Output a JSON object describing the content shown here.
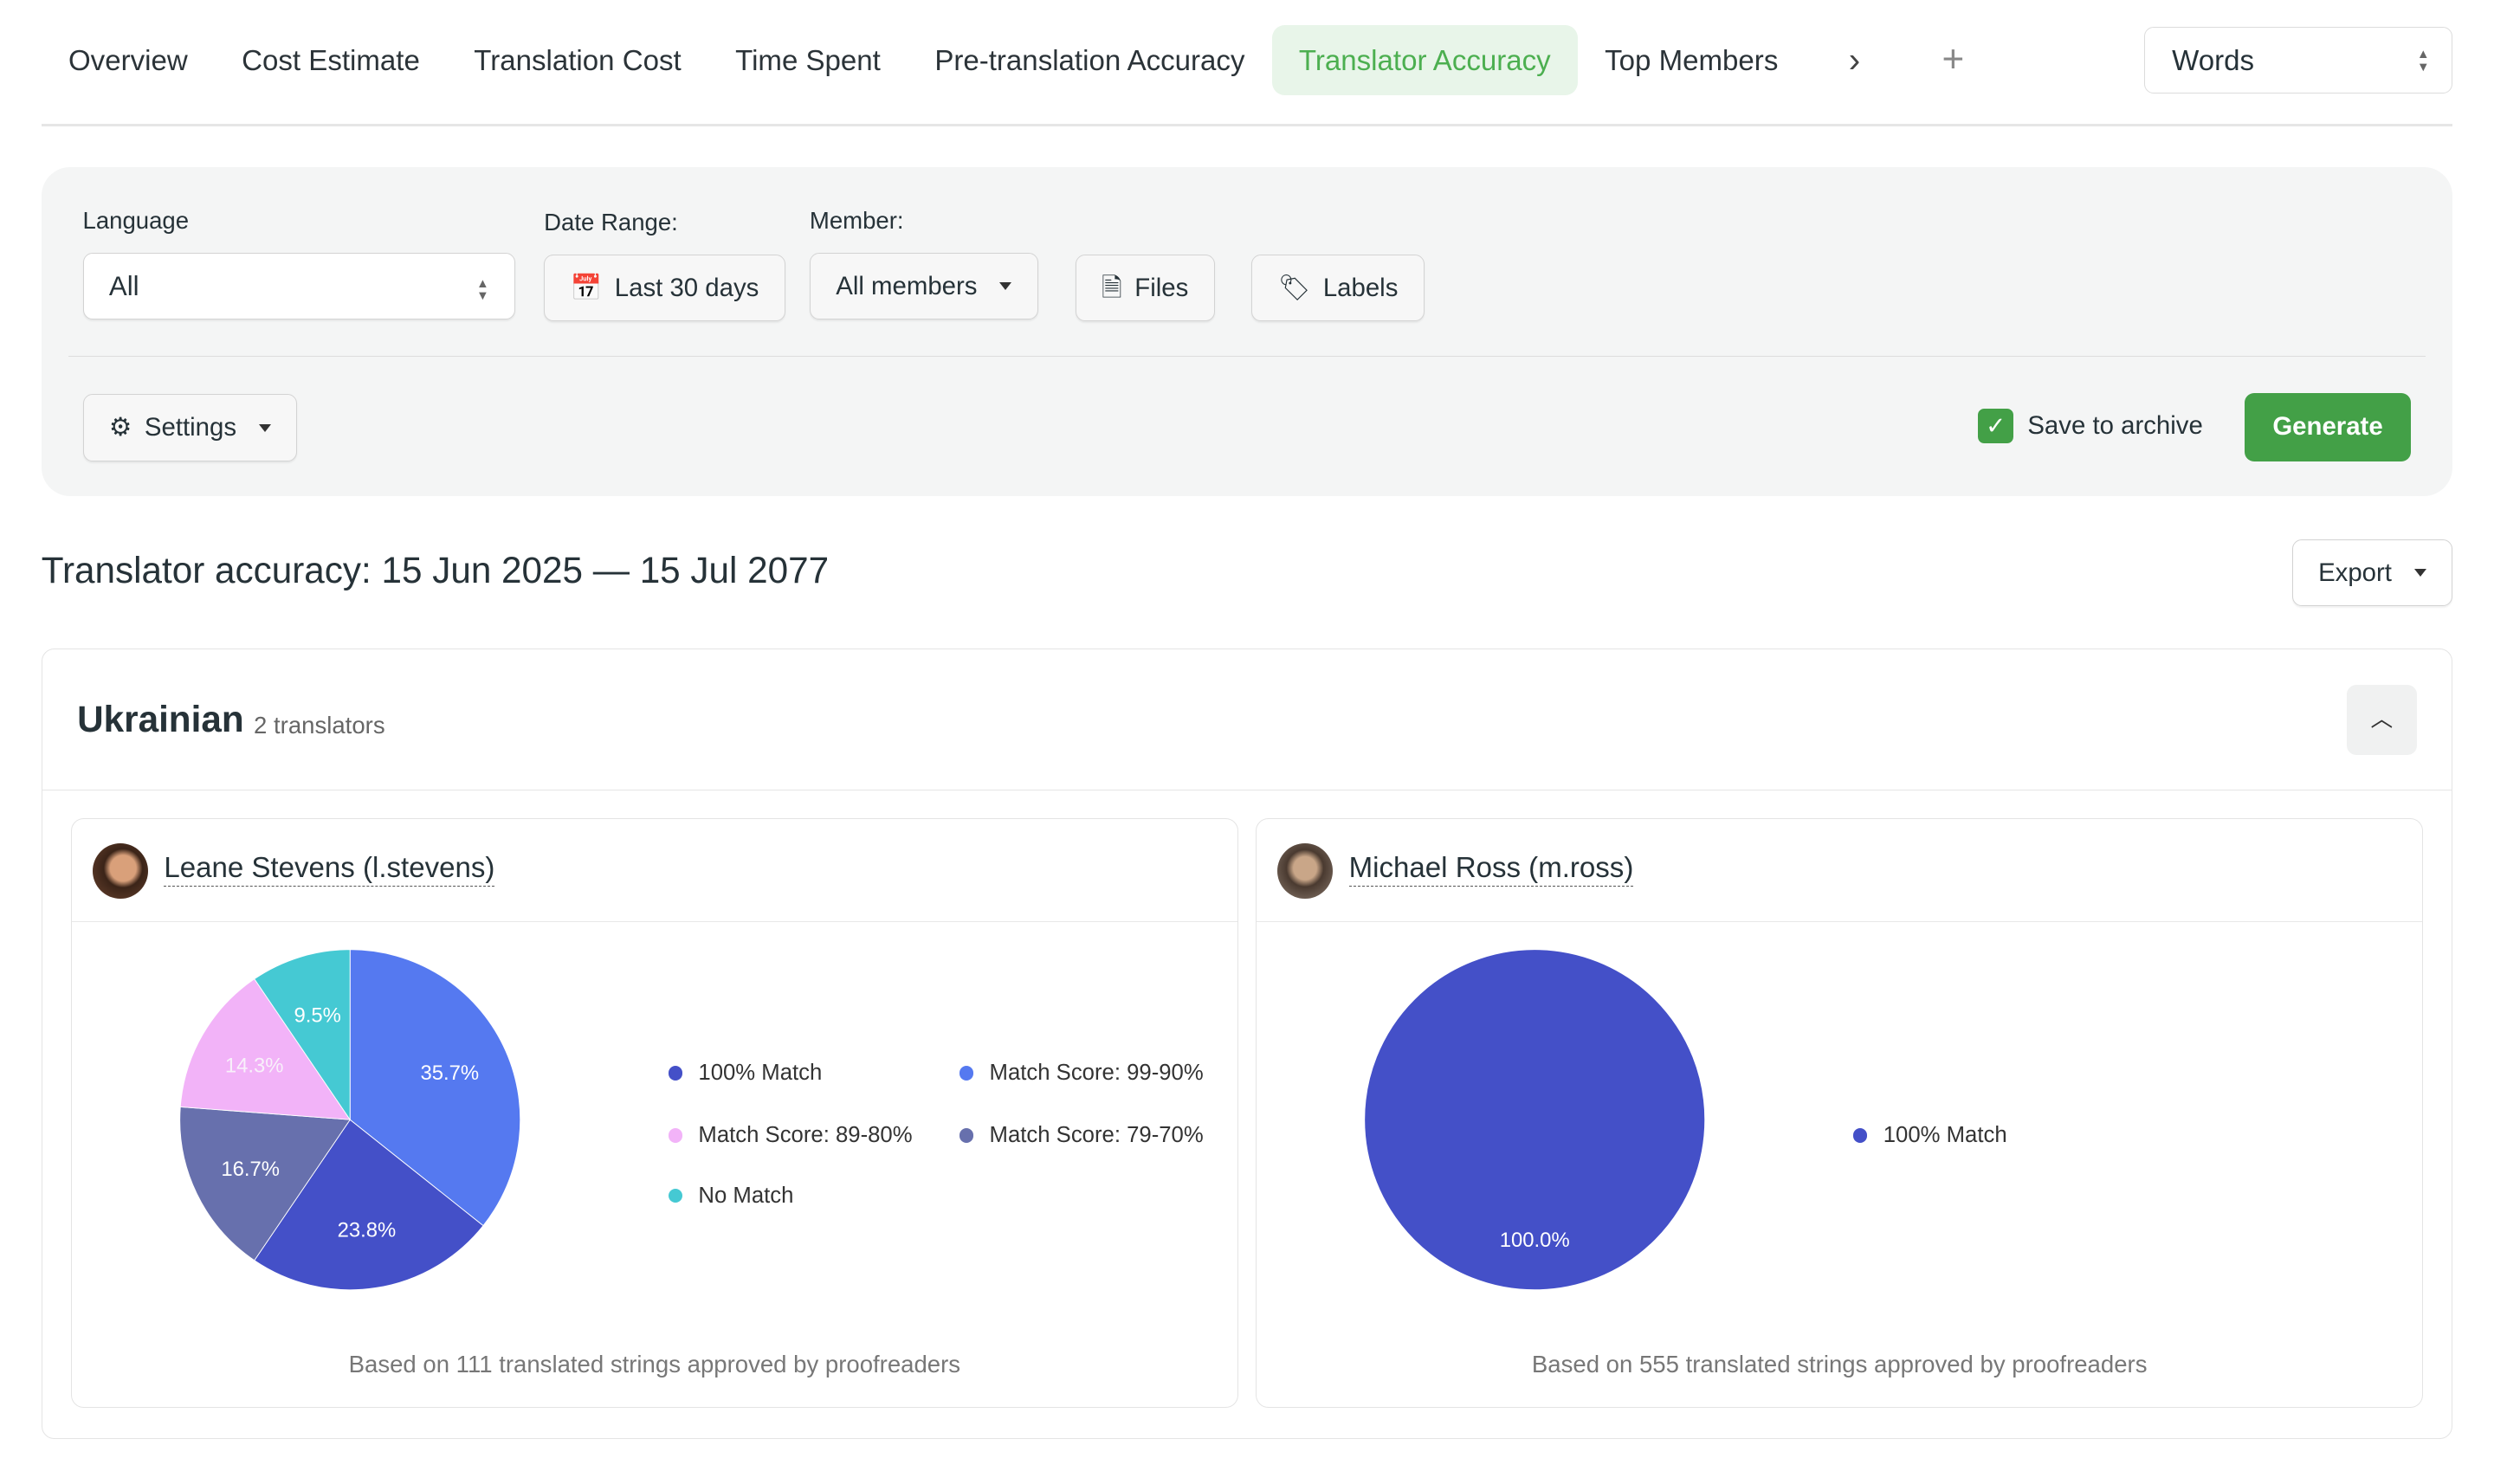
{
  "tabs": [
    {
      "label": "Overview",
      "active": false
    },
    {
      "label": "Cost Estimate",
      "active": false
    },
    {
      "label": "Translation Cost",
      "active": false
    },
    {
      "label": "Time Spent",
      "active": false
    },
    {
      "label": "Pre-translation Accuracy",
      "active": false
    },
    {
      "label": "Translator Accuracy",
      "active": true
    },
    {
      "label": "Top Members",
      "active": false
    }
  ],
  "unit_select": "Words",
  "filters": {
    "language_label": "Language",
    "language_value": "All",
    "date_label": "Date Range:",
    "date_value": "Last 30 days",
    "member_label": "Member:",
    "member_value": "All members",
    "files": "Files",
    "labels": "Labels",
    "settings": "Settings",
    "save_archive": "Save to archive",
    "save_archive_checked": true,
    "generate": "Generate"
  },
  "report_title": "Translator accuracy: 15 Jun 2025 — 15 Jul 2077",
  "export": "Export",
  "group": {
    "language": "Ukrainian",
    "count": "2 translators"
  },
  "colors": {
    "100% Match": "#4450c8",
    "Match Score: 99-90%": "#5579f0",
    "Match Score: 89-80%": "#f2b3f8",
    "Match Score: 79-70%": "#6770ad",
    "No Match": "#45c9d3",
    "accent": "#43a047"
  },
  "chart_data": [
    {
      "type": "pie",
      "user": "Leane Stevens (l.stevens)",
      "slices": [
        {
          "name": "Match Score: 99-90%",
          "value": 35.7,
          "label": "35.7%"
        },
        {
          "name": "100% Match",
          "value": 23.8,
          "label": "23.8%"
        },
        {
          "name": "Match Score: 79-70%",
          "value": 16.7,
          "label": "16.7%"
        },
        {
          "name": "Match Score: 89-80%",
          "value": 14.3,
          "label": "14.3%"
        },
        {
          "name": "No Match",
          "value": 9.5,
          "label": "9.5%"
        }
      ],
      "legend": [
        "100% Match",
        "Match Score: 99-90%",
        "Match Score: 89-80%",
        "Match Score: 79-70%",
        "No Match"
      ],
      "footer": "Based on 111 translated strings approved by proofreaders"
    },
    {
      "type": "pie",
      "user": "Michael Ross (m.ross)",
      "slices": [
        {
          "name": "100% Match",
          "value": 100.0,
          "label": "100.0%"
        }
      ],
      "legend": [
        "100% Match"
      ],
      "footer": "Based on 555 translated strings approved by proofreaders"
    }
  ]
}
